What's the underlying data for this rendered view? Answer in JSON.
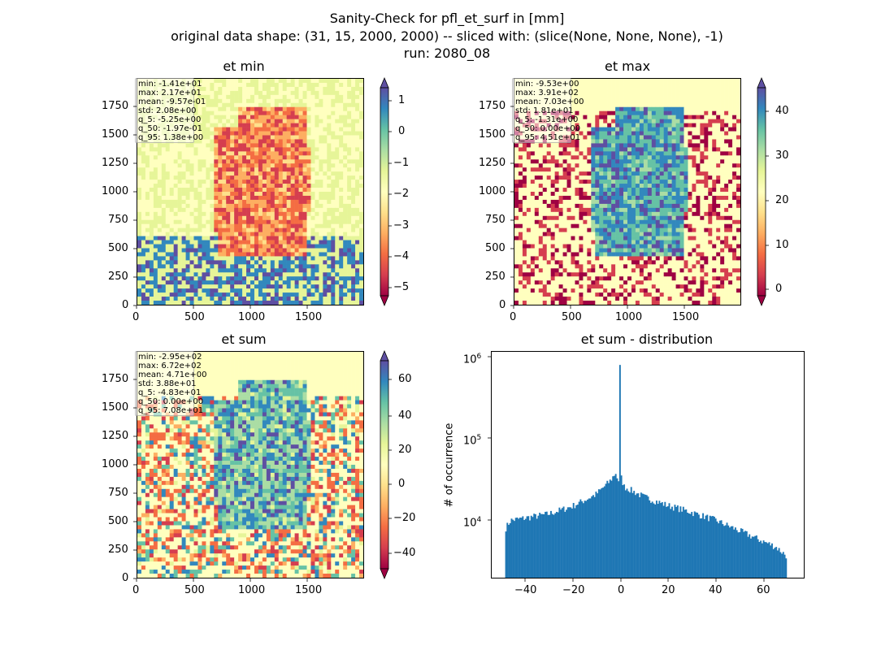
{
  "suptitle": {
    "line1": "Sanity-Check for pfl_et_surf in [mm]",
    "line2": "original data shape: (31, 15, 2000, 2000) -- sliced with: (slice(None, None, None), -1)",
    "line3": "run: 2080_08"
  },
  "colors": {
    "histogram_bar": "#1f77b4",
    "colormap": "Spectral"
  },
  "chart_data": [
    {
      "type": "heatmap",
      "title": "et min",
      "xlim": [
        0,
        2000
      ],
      "ylim": [
        0,
        2000
      ],
      "xticks": [
        "0",
        "500",
        "1000",
        "1500"
      ],
      "yticks": [
        "0",
        "250",
        "500",
        "750",
        "1000",
        "1250",
        "1500",
        "1750"
      ],
      "colorbar": {
        "vmin": -5.25,
        "vmax": 1.38,
        "extend": "both",
        "ticks": [
          "1",
          "0",
          "−1",
          "−2",
          "−3",
          "−4",
          "−5"
        ]
      },
      "stats": [
        "min: -1.41e+01",
        "max: 2.17e+01",
        "mean: -9.57e-01",
        "std: 2.08e+00",
        "q_5: -5.25e+00",
        "q_50: -1.97e-01",
        "q_95: 1.38e+00"
      ]
    },
    {
      "type": "heatmap",
      "title": "et max",
      "xlim": [
        0,
        2000
      ],
      "ylim": [
        0,
        2000
      ],
      "xticks": [
        "0",
        "500",
        "1000",
        "1500"
      ],
      "yticks": [
        "0",
        "250",
        "500",
        "750",
        "1000",
        "1250",
        "1500",
        "1750"
      ],
      "colorbar": {
        "vmin": -1.31,
        "vmax": 45.1,
        "extend": "both",
        "ticks": [
          "40",
          "30",
          "20",
          "10",
          "0"
        ]
      },
      "stats": [
        "min: -9.53e+00",
        "max: 3.91e+02",
        "mean: 7.03e+00",
        "std: 1.81e+01",
        "q_5: -1.31e+00",
        "q_50: 0.00e+00",
        "q_95: 4.51e+01"
      ]
    },
    {
      "type": "heatmap",
      "title": "et sum",
      "xlim": [
        0,
        2000
      ],
      "ylim": [
        0,
        2000
      ],
      "xticks": [
        "0",
        "500",
        "1000",
        "1500"
      ],
      "yticks": [
        "0",
        "250",
        "500",
        "750",
        "1000",
        "1250",
        "1500",
        "1750"
      ],
      "colorbar": {
        "vmin": -48.3,
        "vmax": 70.8,
        "extend": "both",
        "ticks": [
          "60",
          "40",
          "20",
          "0",
          "−20",
          "−40"
        ]
      },
      "stats": [
        "min: -2.95e+02",
        "max: 6.72e+02",
        "mean: 4.71e+00",
        "std: 3.88e+01",
        "q_5: -4.83e+01",
        "q_50: 0.00e+00",
        "q_95: 7.08e+01"
      ]
    },
    {
      "type": "bar",
      "title": "et sum - distribution",
      "ylabel": "# of occurrence",
      "yscale": "log",
      "xlim": [
        -54,
        78
      ],
      "ylim": [
        1700,
        1200000
      ],
      "xticks": [
        "−40",
        "−20",
        "0",
        "20",
        "40",
        "60"
      ],
      "yticks": [
        "10",
        "10",
        "10"
      ],
      "ytick_exponents": [
        "4",
        "5",
        "6"
      ],
      "bin_range": [
        -48.3,
        70.8
      ],
      "profile": [
        [
          -48.3,
          7000
        ],
        [
          -46,
          9000
        ],
        [
          -40,
          9600
        ],
        [
          -30,
          10800
        ],
        [
          -20,
          13500
        ],
        [
          -10,
          19000
        ],
        [
          -4,
          28000
        ],
        [
          -1.5,
          36000
        ],
        [
          -0.3,
          26000
        ],
        [
          0,
          820000
        ],
        [
          0.5,
          33000
        ],
        [
          2,
          24000
        ],
        [
          10,
          18000
        ],
        [
          20,
          14000
        ],
        [
          30,
          11500
        ],
        [
          40,
          9200
        ],
        [
          50,
          6800
        ],
        [
          60,
          5000
        ],
        [
          66,
          4200
        ],
        [
          70.8,
          3200
        ]
      ]
    }
  ]
}
